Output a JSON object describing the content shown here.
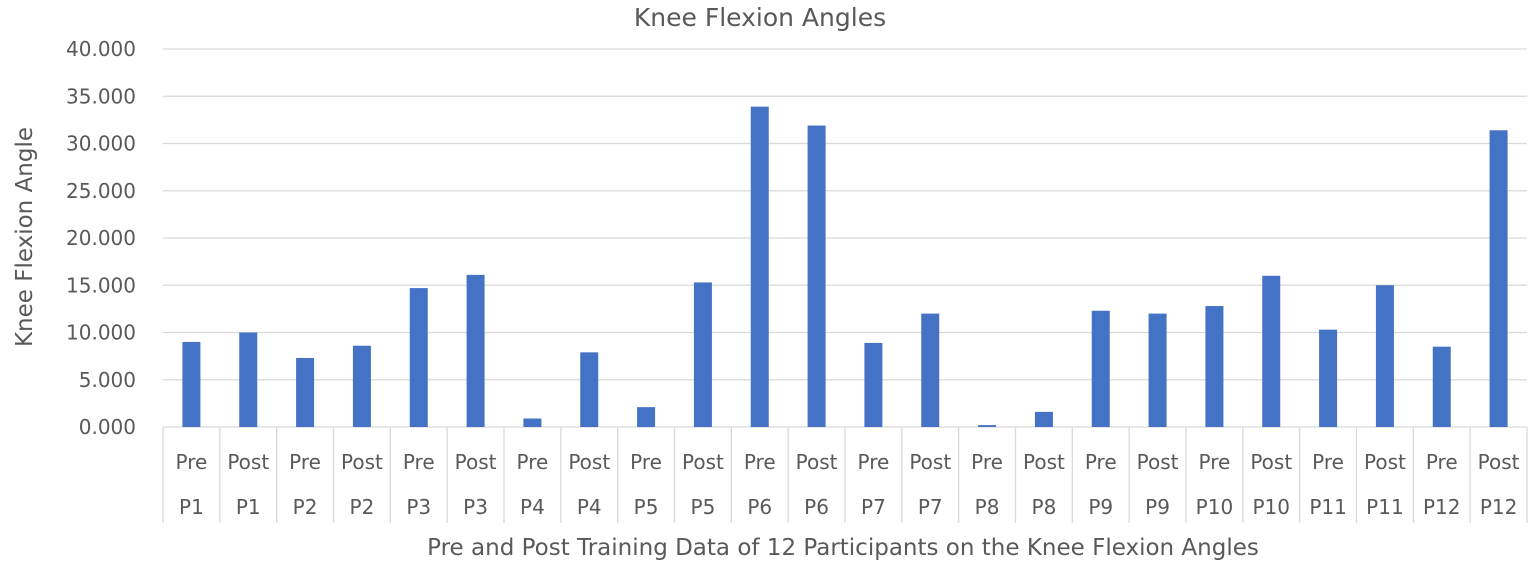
{
  "chart_data": {
    "type": "bar",
    "title": "Knee Flexion Angles",
    "xlabel": "Pre and Post Training Data of 12 Participants on the Knee Flexion Angles",
    "ylabel": "Knee Flexion Angle",
    "ylim": [
      0,
      40
    ],
    "yticks": [
      "0.000",
      "5.000",
      "10.000",
      "15.000",
      "20.000",
      "25.000",
      "30.000",
      "35.000",
      "40.000"
    ],
    "grid": true,
    "legend": "none",
    "bar_color": "#4472C4",
    "categories": [
      {
        "phase": "Pre",
        "participant": "P1"
      },
      {
        "phase": "Post",
        "participant": "P1"
      },
      {
        "phase": "Pre",
        "participant": "P2"
      },
      {
        "phase": "Post",
        "participant": "P2"
      },
      {
        "phase": "Pre",
        "participant": "P3"
      },
      {
        "phase": "Post",
        "participant": "P3"
      },
      {
        "phase": "Pre",
        "participant": "P4"
      },
      {
        "phase": "Post",
        "participant": "P4"
      },
      {
        "phase": "Pre",
        "participant": "P5"
      },
      {
        "phase": "Post",
        "participant": "P5"
      },
      {
        "phase": "Pre",
        "participant": "P6"
      },
      {
        "phase": "Post",
        "participant": "P6"
      },
      {
        "phase": "Pre",
        "participant": "P7"
      },
      {
        "phase": "Post",
        "participant": "P7"
      },
      {
        "phase": "Pre",
        "participant": "P8"
      },
      {
        "phase": "Post",
        "participant": "P8"
      },
      {
        "phase": "Pre",
        "participant": "P9"
      },
      {
        "phase": "Post",
        "participant": "P9"
      },
      {
        "phase": "Pre",
        "participant": "P10"
      },
      {
        "phase": "Post",
        "participant": "P10"
      },
      {
        "phase": "Pre",
        "participant": "P11"
      },
      {
        "phase": "Post",
        "participant": "P11"
      },
      {
        "phase": "Pre",
        "participant": "P12"
      },
      {
        "phase": "Post",
        "participant": "P12"
      }
    ],
    "values": [
      9.0,
      10.0,
      7.3,
      8.6,
      14.7,
      16.1,
      0.9,
      7.9,
      2.1,
      15.3,
      33.9,
      31.9,
      8.9,
      12.0,
      0.2,
      1.6,
      12.3,
      12.0,
      12.8,
      16.0,
      10.3,
      15.0,
      8.5,
      31.4
    ]
  }
}
